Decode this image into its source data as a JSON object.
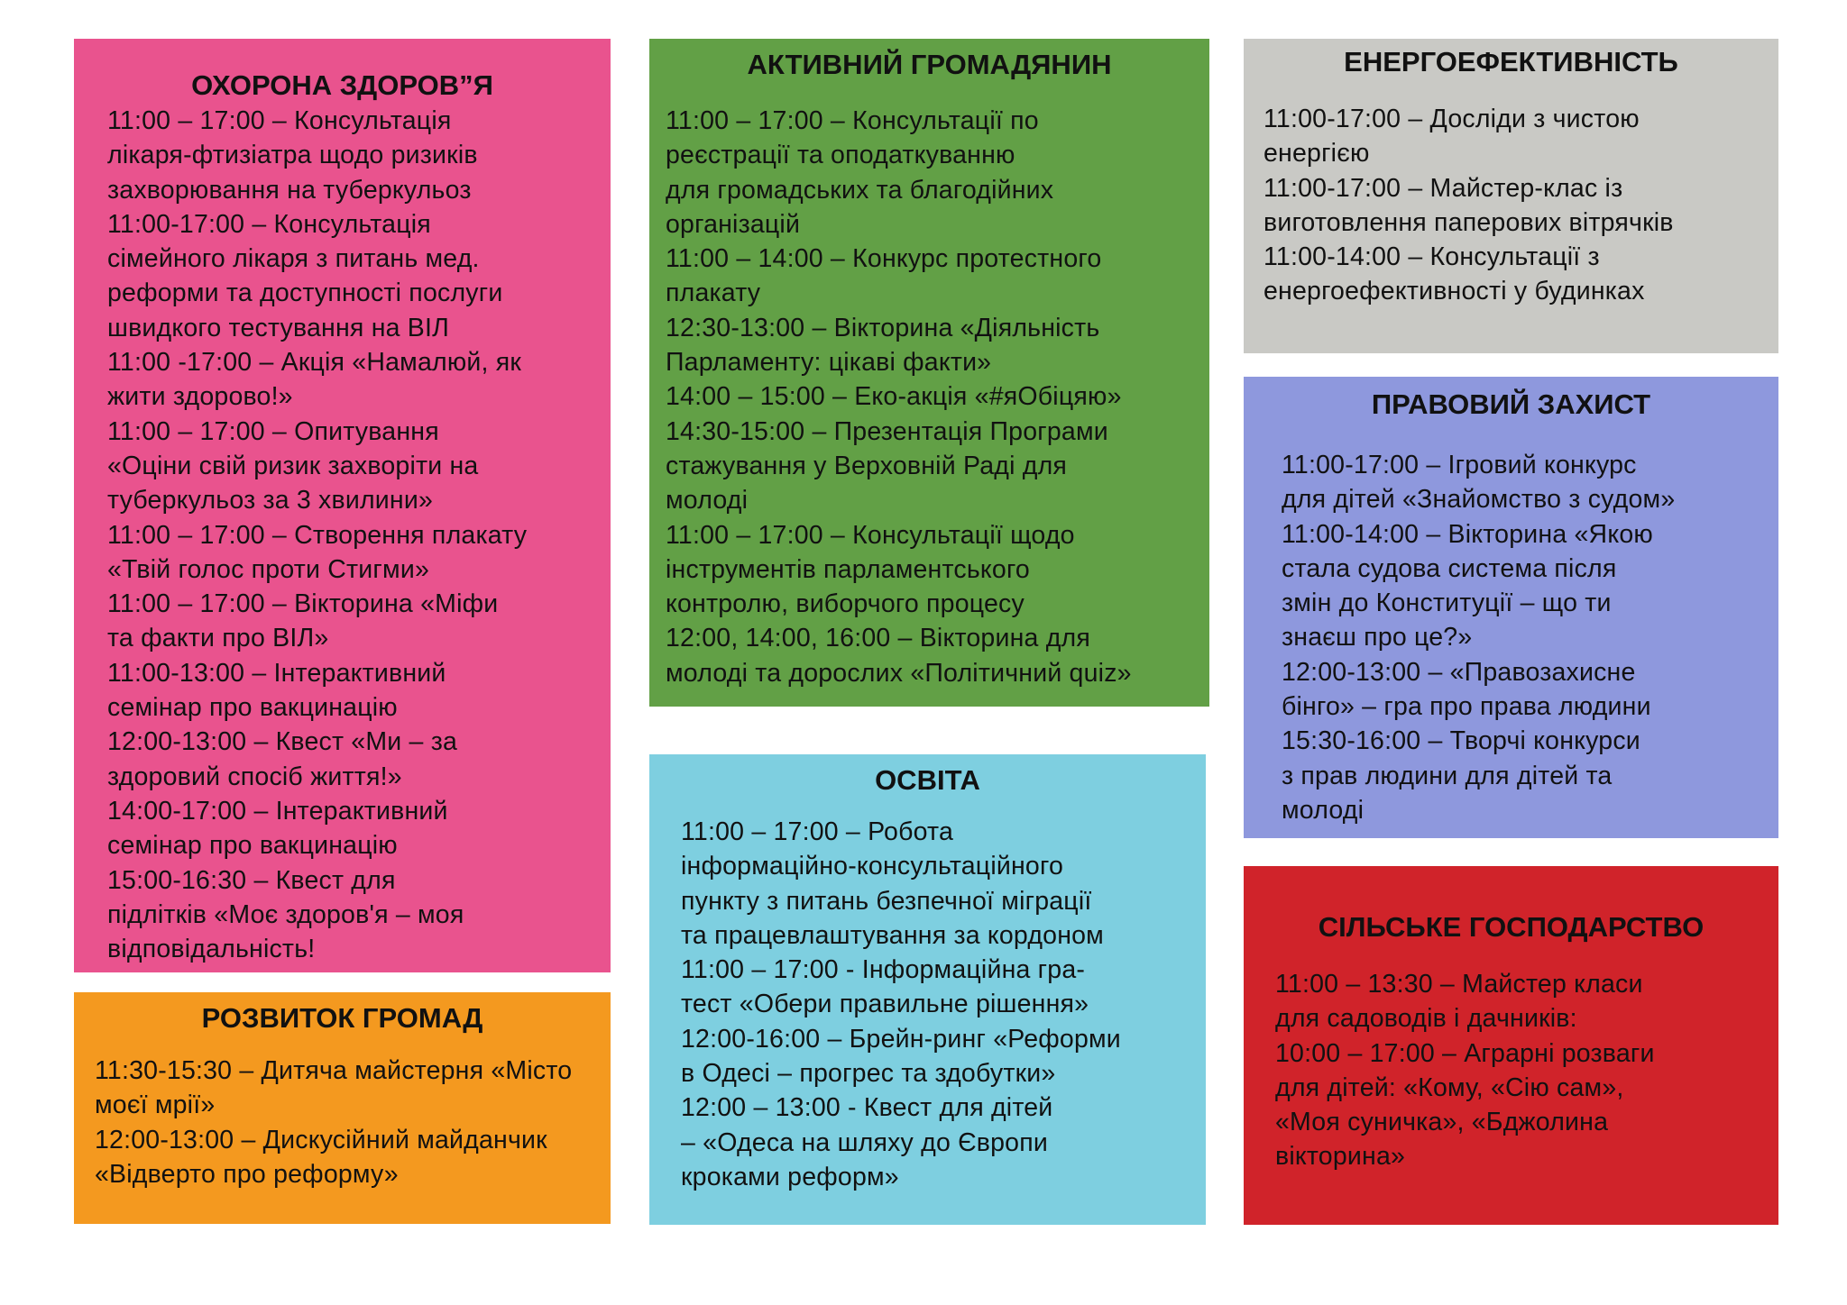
{
  "colors": {
    "health": "#e9538e",
    "community": "#f4991f",
    "citizen": "#62a046",
    "education": "#7ecfe0",
    "energy": "#c9c9c5",
    "legal": "#8e98dd",
    "agriculture": "#d0232a"
  },
  "sections": [
    {
      "id": "health",
      "title": "ОХОРОНА ЗДОРОВ”Я",
      "lines": [
        "11:00 – 17:00 – Консультація",
        "лікаря-фтизіатра щодо ризиків",
        "захворювання на туберкульоз",
        "11:00-17:00 – Консультація",
        "сімейного лікаря з питань мед.",
        "реформи та доступності послуги",
        "швидкого тестування на  ВІЛ",
        "11:00 -17:00 – Акція «Намалюй, як",
        "жити здорово!»",
        "11:00 – 17:00 – Опитування",
        "«Оціни свій ризик захворіти на",
        "туберкульоз за 3 хвилини»",
        "11:00 – 17:00 –  Створення плакату",
        "«Твій голос проти Стигми»",
        "11:00 – 17:00 –  Вікторина «Міфи",
        "та факти про ВІЛ»",
        "11:00-13:00 – Інтерактивний",
        "семінар про вакцинацію",
        "12:00-13:00 – Квест «Ми – за",
        "здоровий спосіб життя!»",
        "14:00-17:00 – Інтерактивний",
        "семінар про вакцинацію",
        "15:00-16:30 – Квест для",
        "підлітків «Моє здоров'я – моя",
        "відповідальність!"
      ]
    },
    {
      "id": "community",
      "title": "РОЗВИТОК ГРОМАД",
      "lines": [
        "11:30-15:30 – Дитяча майстерня «Місто",
        "моєї мрії»",
        "12:00-13:00 – Дискусійний майданчик",
        "«Відверто про реформу»"
      ]
    },
    {
      "id": "citizen",
      "title": "АКТИВНИЙ ГРОМАДЯНИН",
      "lines": [
        "11:00 – 17:00 – Консультації по",
        "реєстрації та оподаткуванню",
        "для громадських та благодійних",
        "організацій",
        "11:00 – 14:00 – Конкурс протестного",
        "плакату",
        "12:30-13:00 – Вікторина «Діяльність",
        "Парламенту: цікаві факти»",
        "14:00 – 15:00 – Еко-акція «#яОбіцяю»",
        "14:30-15:00 –  Презентація Програми",
        "стажування у Верховній Раді для",
        "молоді",
        "11:00 – 17:00 – Консультації щодо",
        "інструментів парламентського",
        "контролю, виборчого процесу",
        "12:00, 14:00, 16:00 – Вікторина для",
        "молоді та дорослих «Політичний quiz»"
      ]
    },
    {
      "id": "education",
      "title": "ОСВІТА",
      "lines": [
        "11:00 – 17:00 –  Робота",
        "інформаційно-консультаційного",
        "пункту з питань безпечної міграції",
        "та працевлаштування за кордоном",
        "11:00 – 17:00 - Інформаційна гра-",
        "тест «Обери правильне рішення»",
        "12:00-16:00 – Брейн-ринг «Реформи",
        "в Одесі – прогрес та здобутки»",
        "12:00 – 13:00  - Квест для дітей",
        "– «Одеса на шляху до Європи",
        "кроками реформ»"
      ]
    },
    {
      "id": "energy",
      "title": "ЕНЕРГОЕФЕКТИВНІСТЬ",
      "lines": [
        "11:00-17:00 – Досліди з чистою",
        "енергією",
        "11:00-17:00 – Майстер-клас із",
        "виготовлення паперових вітрячків",
        "11:00-14:00 – Консультації з",
        "енергоефективності у будинках"
      ]
    },
    {
      "id": "legal",
      "title": "ПРАВОВИЙ ЗАХИСТ",
      "lines": [
        "11:00-17:00 – Ігровий конкурс",
        "для дітей «Знайомство з судом»",
        "11:00-14:00 – Вікторина «Якою",
        "стала судова система після",
        "змін до Конституції – що ти",
        "знаєш про це?»",
        "12:00-13:00 – «Правозахисне",
        "бінго» – гра про права людини",
        "15:30-16:00 – Творчі конкурси",
        "з прав людини для дітей та",
        "молоді"
      ]
    },
    {
      "id": "agriculture",
      "title": "СІЛЬСЬКЕ ГОСПОДАРСТВО",
      "lines": [
        "11:00 – 13:30 – Майстер класи",
        "для садоводів і дачників:",
        "10:00 – 17:00 – Аграрні розваги",
        "для дітей: «Кому, «Сію сам»,",
        "«Моя суничка», «Бджолина",
        "вікторина»"
      ]
    }
  ]
}
